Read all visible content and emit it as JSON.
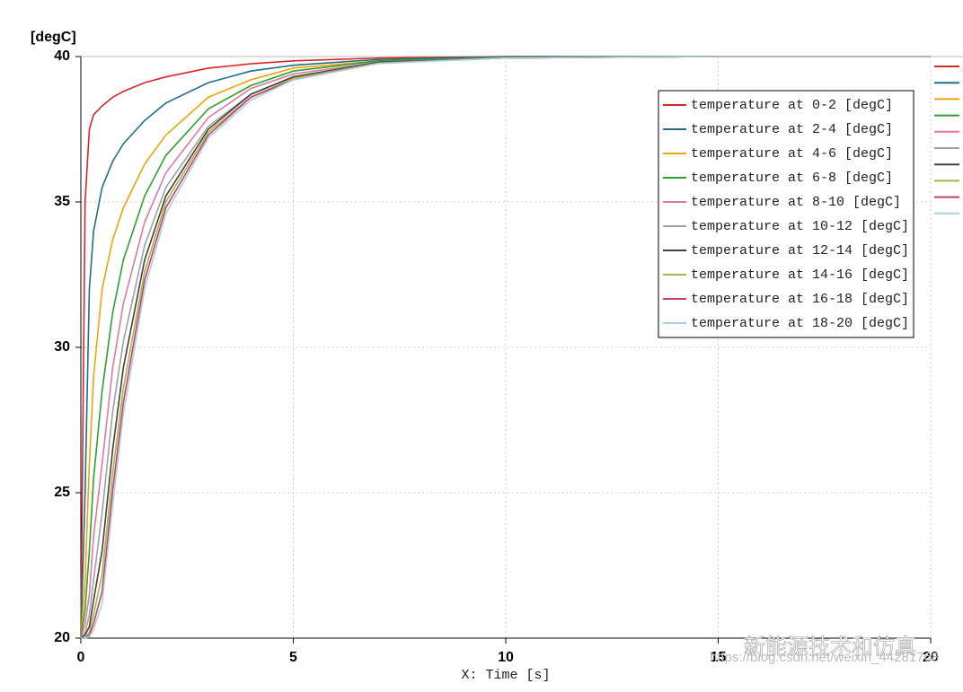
{
  "chart_data": {
    "type": "line",
    "ylabel": "[degC]",
    "xlabel": "X: Time [s]",
    "watermark": "新能源技术和仿真",
    "watermark_url": "https://blog.csdn.net/weixin_44281768",
    "xlim": [
      0,
      20
    ],
    "xticks": [
      0,
      5,
      10,
      15,
      20
    ],
    "ylim": [
      20,
      40
    ],
    "yticks": [
      20,
      25,
      30,
      35,
      40
    ],
    "grid": true,
    "legend": "upper right",
    "x": [
      0,
      0.1,
      0.2,
      0.3,
      0.5,
      0.75,
      1,
      1.5,
      2,
      3,
      4,
      5,
      7,
      10,
      15,
      20
    ],
    "series": [
      {
        "name": "temperature at 0-2 [degC]",
        "color": "#d62728",
        "values": [
          20,
          35,
          37.5,
          38,
          38.3,
          38.6,
          38.8,
          39.1,
          39.3,
          39.6,
          39.75,
          39.85,
          39.95,
          40,
          40,
          40
        ]
      },
      {
        "name": "temperature at 2-4 [degC]",
        "color": "#1f6f8b",
        "values": [
          20,
          25,
          32,
          34,
          35.5,
          36.4,
          37,
          37.8,
          38.4,
          39.1,
          39.5,
          39.7,
          39.9,
          40,
          40,
          40
        ]
      },
      {
        "name": "temperature at 4-6 [degC]",
        "color": "#f0a30a",
        "values": [
          20,
          22,
          26,
          29,
          32,
          33.7,
          34.8,
          36.3,
          37.3,
          38.6,
          39.2,
          39.6,
          39.85,
          39.97,
          40,
          40
        ]
      },
      {
        "name": "temperature at 6-8 [degC]",
        "color": "#2ca02c",
        "values": [
          20,
          21,
          23,
          25.5,
          28.5,
          31.2,
          33,
          35.2,
          36.6,
          38.2,
          39,
          39.5,
          39.85,
          39.97,
          40,
          40
        ]
      },
      {
        "name": "temperature at 8-10 [degC]",
        "color": "#e377a0",
        "values": [
          20,
          20.5,
          21.5,
          23.5,
          26,
          29.3,
          31.5,
          34.3,
          36,
          37.9,
          38.9,
          39.4,
          39.8,
          39.96,
          40,
          40
        ]
      },
      {
        "name": "temperature at 10-12 [degC]",
        "color": "#a0a0a0",
        "values": [
          20,
          20.2,
          20.8,
          22,
          24.3,
          27.8,
          30.2,
          33.5,
          35.5,
          37.6,
          38.7,
          39.3,
          39.8,
          39.95,
          40,
          40
        ]
      },
      {
        "name": "temperature at 12-14 [degC]",
        "color": "#404040",
        "values": [
          20,
          20.1,
          20.4,
          21.3,
          23,
          26.5,
          29.3,
          33,
          35.2,
          37.5,
          38.7,
          39.3,
          39.8,
          39.95,
          40,
          40
        ]
      },
      {
        "name": "temperature at 14-16 [degC]",
        "color": "#a8b43c",
        "values": [
          20,
          20,
          20.2,
          20.8,
          22.2,
          25.7,
          28.6,
          32.6,
          35,
          37.4,
          38.6,
          39.25,
          39.78,
          39.95,
          40,
          40
        ]
      },
      {
        "name": "temperature at 16-18 [degC]",
        "color": "#c0406e",
        "values": [
          20,
          20,
          20.1,
          20.5,
          21.6,
          25.1,
          28.1,
          32.3,
          34.8,
          37.3,
          38.6,
          39.2,
          39.77,
          39.95,
          40,
          40
        ]
      },
      {
        "name": "temperature at 18-20 [degC]",
        "color": "#a8d0e0",
        "values": [
          20,
          20,
          20.05,
          20.3,
          21.2,
          24.6,
          27.7,
          32,
          34.6,
          37.2,
          38.5,
          39.2,
          39.76,
          39.95,
          40,
          40
        ]
      }
    ]
  }
}
